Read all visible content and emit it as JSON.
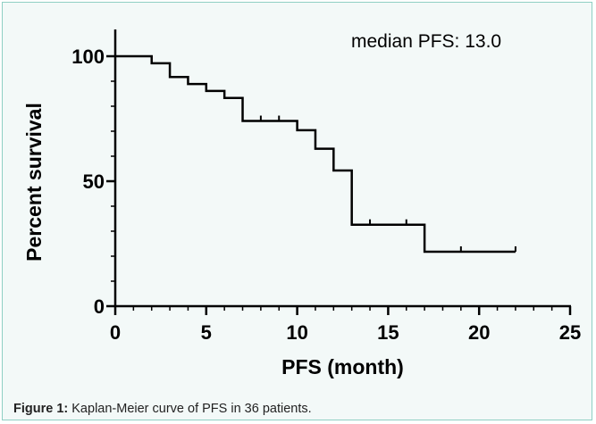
{
  "chart_data": {
    "type": "line",
    "subtype": "kaplan-meier step curve",
    "xlabel": "PFS (month)",
    "ylabel": "Percent survival",
    "xlim": [
      0,
      25
    ],
    "ylim": [
      0,
      100
    ],
    "xticks": [
      0,
      5,
      10,
      15,
      20,
      25
    ],
    "yticks": [
      0,
      50,
      100
    ],
    "grid": false,
    "annotation": "median PFS: 13.0",
    "line_color": "#000000",
    "series": [
      {
        "steps": [
          {
            "x": 0,
            "y": 100
          },
          {
            "x": 2,
            "y": 97.2
          },
          {
            "x": 3,
            "y": 91.7
          },
          {
            "x": 4,
            "y": 88.9
          },
          {
            "x": 5,
            "y": 86.1
          },
          {
            "x": 6,
            "y": 83.3
          },
          {
            "x": 7,
            "y": 74.1
          },
          {
            "x": 10,
            "y": 70.4
          },
          {
            "x": 11,
            "y": 63.0
          },
          {
            "x": 12,
            "y": 54.3
          },
          {
            "x": 13,
            "y": 32.6
          },
          {
            "x": 17,
            "y": 21.8
          }
        ],
        "end_x": 22,
        "censored": [
          {
            "x": 8,
            "y": 74.1
          },
          {
            "x": 9,
            "y": 74.1
          },
          {
            "x": 14,
            "y": 32.6
          },
          {
            "x": 16,
            "y": 32.6
          },
          {
            "x": 19,
            "y": 21.8
          },
          {
            "x": 22,
            "y": 21.8
          }
        ]
      }
    ]
  },
  "caption": {
    "label": "Figure 1:",
    "text": " Kaplan-Meier curve of PFS in 36 patients."
  }
}
